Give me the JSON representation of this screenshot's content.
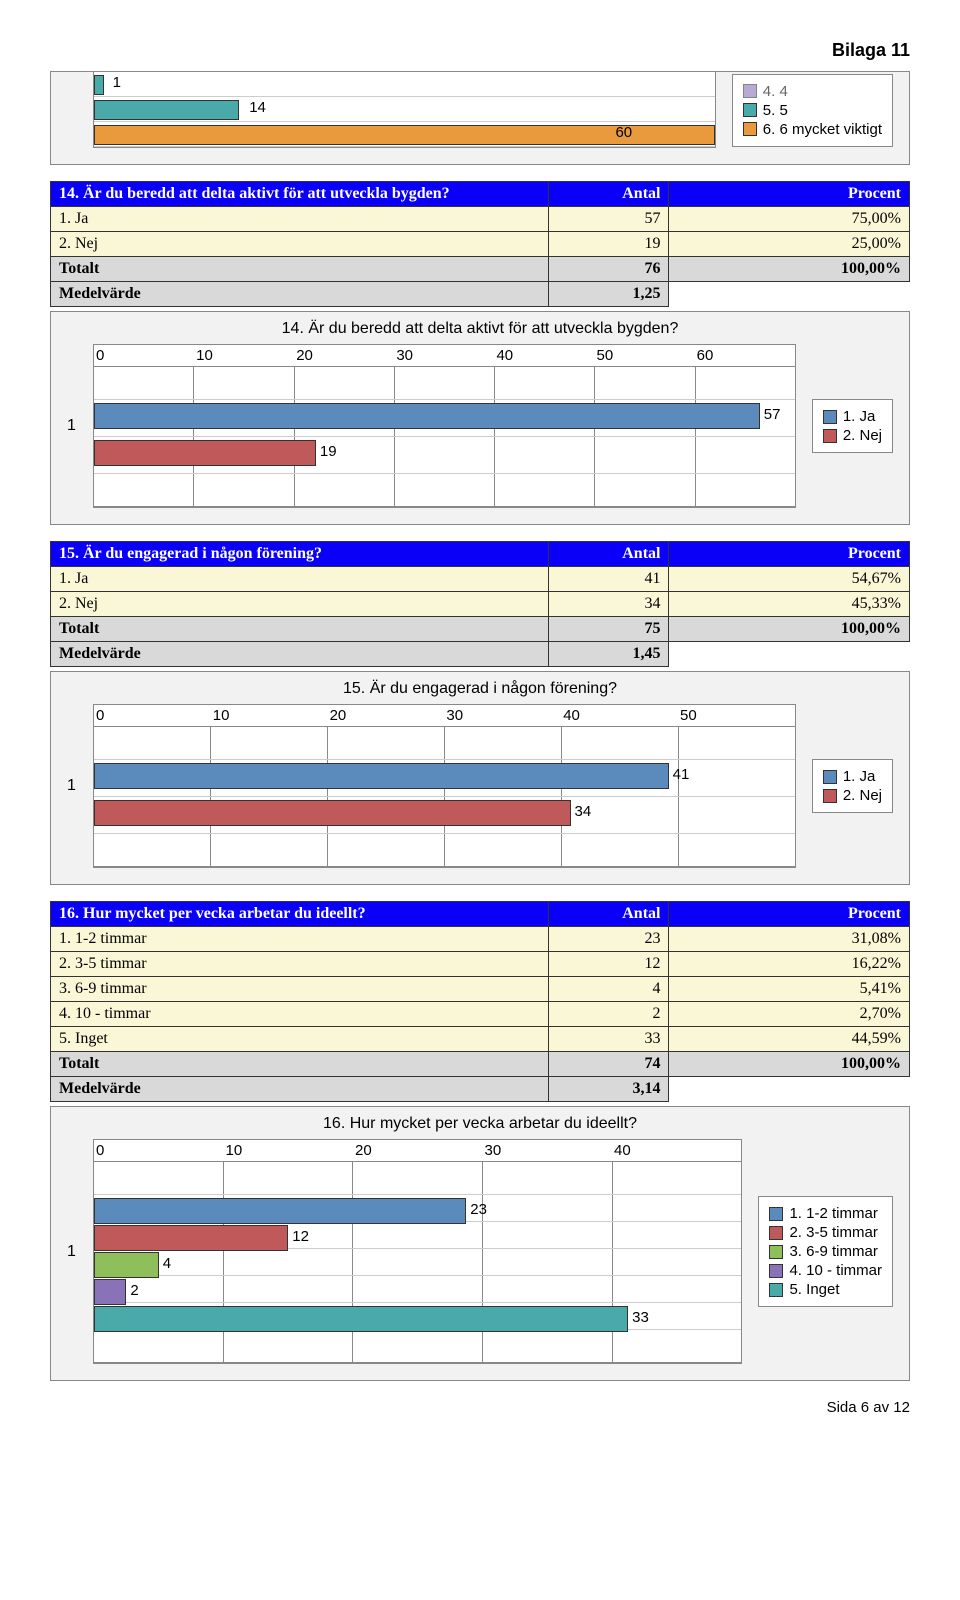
{
  "header": "Bilaga 11",
  "footer": "Sida 6 av 12",
  "colors": {
    "blue": "#5b8bbd",
    "red": "#c05a5a",
    "teal": "#4aa9a9",
    "orange": "#e89a3c",
    "green": "#8fbf5b",
    "purple": "#8a72b8",
    "header_blue": "#0a00f8"
  },
  "top_chart": {
    "bars": [
      {
        "value": 1,
        "pct": 1.67,
        "label_pos": 3,
        "color": "#4aa9a9"
      },
      {
        "value": 14,
        "pct": 23.3,
        "label_pos": 25,
        "color": "#4aa9a9"
      },
      {
        "value": 60,
        "pct": 100,
        "label_pos": 84,
        "label_inside": true,
        "color": "#e89a3c"
      }
    ],
    "legend": [
      {
        "label": "4. 4",
        "color": "#8a72b8",
        "cut": true
      },
      {
        "label": "5. 5",
        "color": "#4aa9a9"
      },
      {
        "label": "6. 6 mycket viktigt",
        "color": "#e89a3c"
      }
    ]
  },
  "q14": {
    "title_row": "14. Är du beredd att delta aktivt för att utveckla bygden?",
    "antal": "Antal",
    "procent": "Procent",
    "rows": [
      {
        "label": "1. Ja",
        "antal": "57",
        "procent": "75,00%"
      },
      {
        "label": "2. Nej",
        "antal": "19",
        "procent": "25,00%"
      }
    ],
    "totalt_label": "Totalt",
    "totalt_antal": "76",
    "totalt_procent": "100,00%",
    "medel_label": "Medelvärde",
    "medel_val": "1,25",
    "chart": {
      "title": "14. Är du beredd att delta aktivt för att utveckla bygden?",
      "axis": [
        "0",
        "10",
        "20",
        "30",
        "40",
        "50",
        "60"
      ],
      "max": 60,
      "bars": [
        {
          "label": "57",
          "value": 57,
          "color": "#5b8bbd"
        },
        {
          "label": "19",
          "value": 19,
          "color": "#c05a5a"
        }
      ],
      "legend": [
        {
          "label": "1. Ja",
          "color": "#5b8bbd"
        },
        {
          "label": "2. Nej",
          "color": "#c05a5a"
        }
      ],
      "ylabel": "1"
    }
  },
  "q15": {
    "title_row": "15. Är du engagerad i någon förening?",
    "rows": [
      {
        "label": "1. Ja",
        "antal": "41",
        "procent": "54,67%"
      },
      {
        "label": "2. Nej",
        "antal": "34",
        "procent": "45,33%"
      }
    ],
    "totalt_antal": "75",
    "totalt_procent": "100,00%",
    "medel_val": "1,45",
    "chart": {
      "title": "15. Är du engagerad i någon förening?",
      "axis": [
        "0",
        "10",
        "20",
        "30",
        "40",
        "50"
      ],
      "max": 50,
      "bars": [
        {
          "label": "41",
          "value": 41,
          "color": "#5b8bbd"
        },
        {
          "label": "34",
          "value": 34,
          "color": "#c05a5a"
        }
      ],
      "legend": [
        {
          "label": "1. Ja",
          "color": "#5b8bbd"
        },
        {
          "label": "2. Nej",
          "color": "#c05a5a"
        }
      ],
      "ylabel": "1"
    }
  },
  "q16": {
    "title_row": "16. Hur mycket per vecka arbetar du ideellt?",
    "rows": [
      {
        "label": "1. 1-2 timmar",
        "antal": "23",
        "procent": "31,08%"
      },
      {
        "label": "2. 3-5 timmar",
        "antal": "12",
        "procent": "16,22%"
      },
      {
        "label": "3. 6-9 timmar",
        "antal": "4",
        "procent": "5,41%"
      },
      {
        "label": "4. 10 - timmar",
        "antal": "2",
        "procent": "2,70%"
      },
      {
        "label": "5. Inget",
        "antal": "33",
        "procent": "44,59%"
      }
    ],
    "totalt_antal": "74",
    "totalt_procent": "100,00%",
    "medel_val": "3,14",
    "chart": {
      "title": "16. Hur mycket per vecka arbetar du ideellt?",
      "axis": [
        "0",
        "10",
        "20",
        "30",
        "40"
      ],
      "max": 40,
      "bars": [
        {
          "label": "23",
          "value": 23,
          "color": "#5b8bbd"
        },
        {
          "label": "12",
          "value": 12,
          "color": "#c05a5a"
        },
        {
          "label": "4",
          "value": 4,
          "color": "#8fbf5b"
        },
        {
          "label": "2",
          "value": 2,
          "color": "#8a72b8"
        },
        {
          "label": "33",
          "value": 33,
          "color": "#4aa9a9"
        }
      ],
      "legend": [
        {
          "label": "1. 1-2 timmar",
          "color": "#5b8bbd"
        },
        {
          "label": "2. 3-5 timmar",
          "color": "#c05a5a"
        },
        {
          "label": "3. 6-9 timmar",
          "color": "#8fbf5b"
        },
        {
          "label": "4. 10 - timmar",
          "color": "#8a72b8"
        },
        {
          "label": "5. Inget",
          "color": "#4aa9a9"
        }
      ],
      "ylabel": "1"
    }
  }
}
